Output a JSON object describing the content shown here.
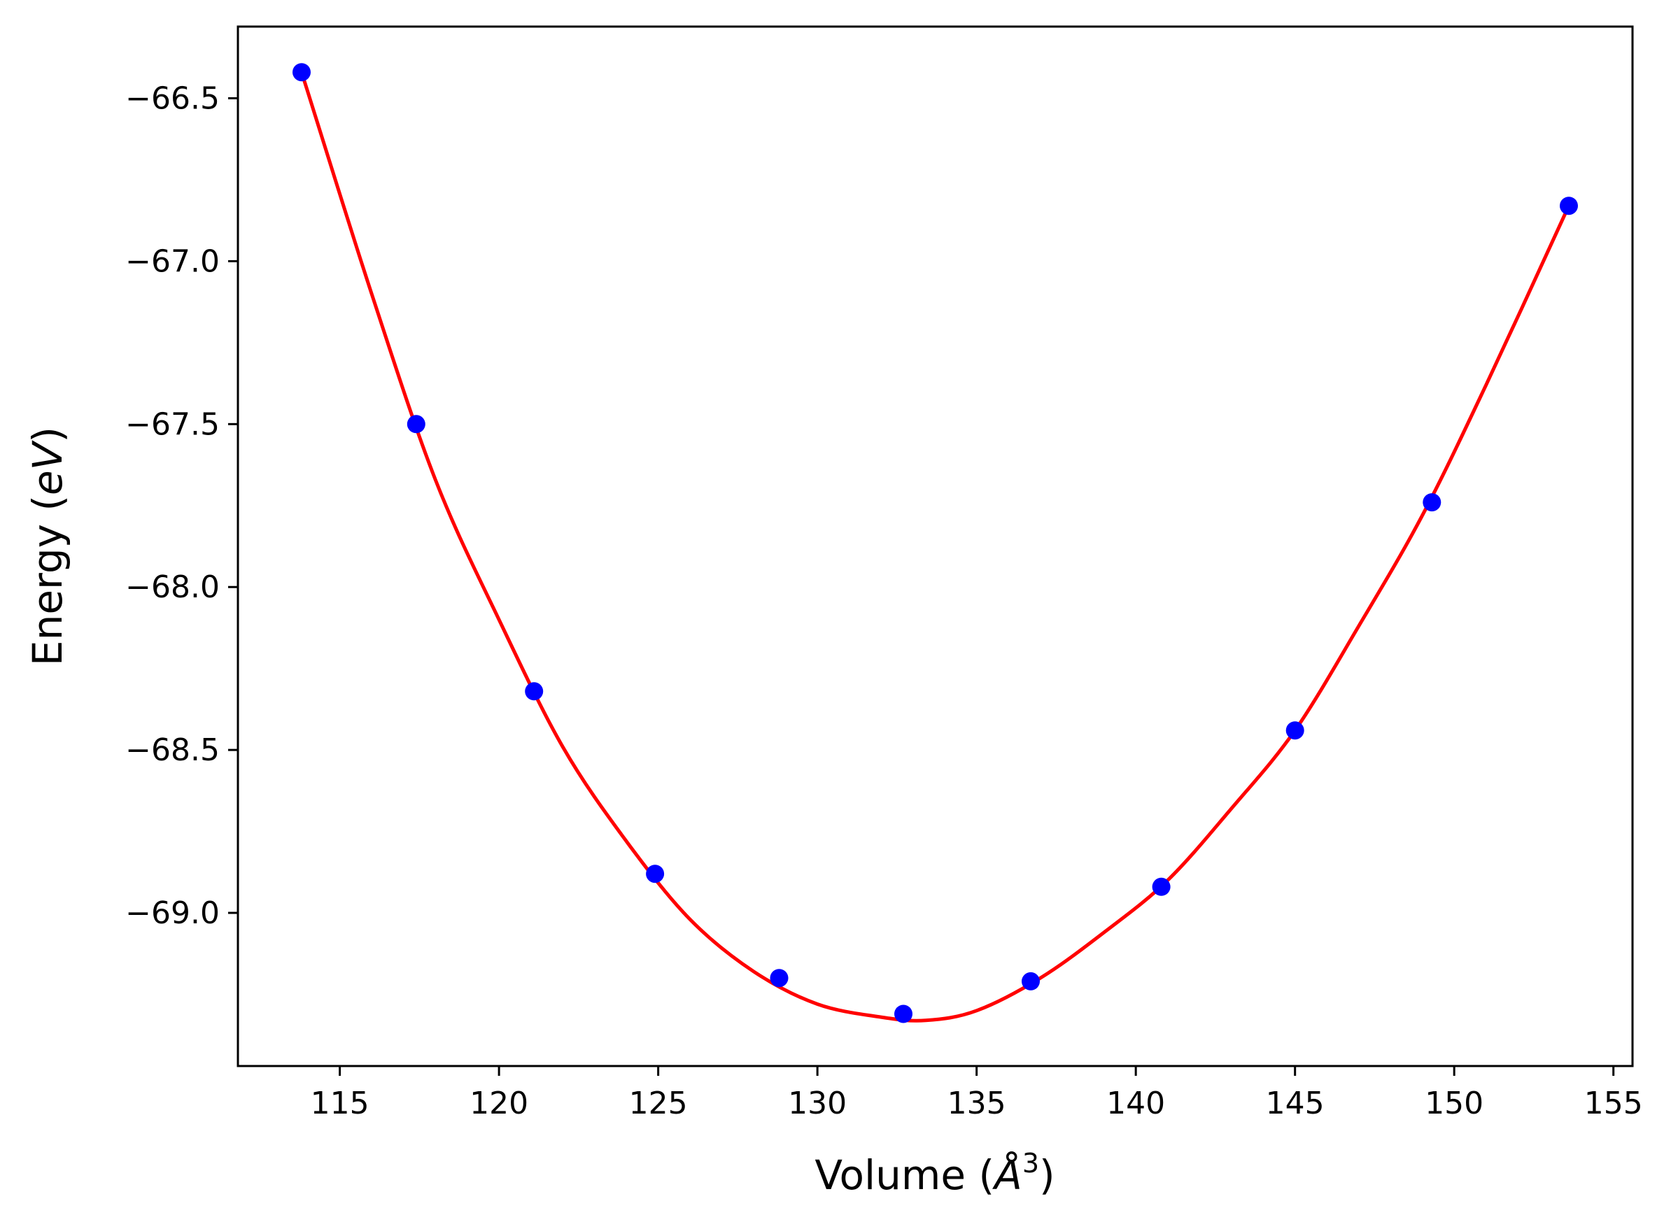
{
  "chart_data": {
    "type": "scatter",
    "title": "",
    "xlabel_parts": [
      "Volume (",
      "Å",
      "3",
      ")"
    ],
    "ylabel_parts": [
      "Energy (",
      "eV",
      ")"
    ],
    "xlim": [
      111.8,
      155.6
    ],
    "ylim": [
      -69.47,
      -66.28
    ],
    "xticks": [
      115,
      120,
      125,
      130,
      135,
      140,
      145,
      150,
      155
    ],
    "xtick_labels": [
      "115",
      "120",
      "125",
      "130",
      "135",
      "140",
      "145",
      "150",
      "155"
    ],
    "yticks": [
      -66.5,
      -67.0,
      -67.5,
      -68.0,
      -68.5,
      -69.0
    ],
    "ytick_labels": [
      "−66.5",
      "−67.0",
      "−67.5",
      "−68.0",
      "−68.5",
      "−69.0"
    ],
    "grid": false,
    "series": [
      {
        "kind": "points",
        "color": "#0000ff",
        "x": [
          113.8,
          117.4,
          121.1,
          124.9,
          128.8,
          132.7,
          136.7,
          140.8,
          145.0,
          149.3,
          153.6
        ],
        "y": [
          -66.42,
          -67.5,
          -68.32,
          -68.88,
          -69.2,
          -69.31,
          -69.21,
          -68.92,
          -68.44,
          -67.74,
          -66.83
        ]
      },
      {
        "kind": "fit-curve",
        "color": "#ff0000",
        "x": [
          113.8,
          116.0,
          118.0,
          120.0,
          122.0,
          124.0,
          126.0,
          128.0,
          130.0,
          132.0,
          133.4,
          135.0,
          137.0,
          139.0,
          141.0,
          143.0,
          145.0,
          147.0,
          149.0,
          151.0,
          153.6
        ],
        "y": [
          -66.42,
          -67.1,
          -67.67,
          -68.1,
          -68.49,
          -68.78,
          -69.02,
          -69.18,
          -69.28,
          -69.32,
          -69.33,
          -69.3,
          -69.2,
          -69.06,
          -68.9,
          -68.68,
          -68.44,
          -68.12,
          -67.78,
          -67.38,
          -66.83
        ]
      }
    ]
  }
}
